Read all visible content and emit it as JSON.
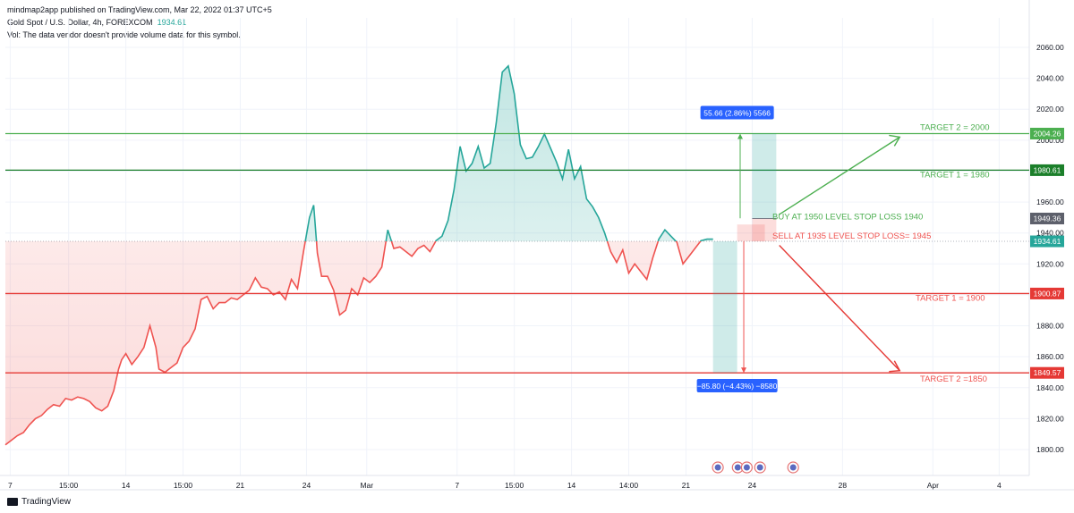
{
  "header": {
    "published": "mindmap2app published on TradingView.com, Mar 22, 2022 01:37 UTC+5",
    "symbol": "Gold Spot / U.S. Dollar, 4h, FOREXCOM",
    "last_price": "1934.61",
    "volume_note": "Vol: The data vendor doesn't provide volume data for this symbol."
  },
  "footer": {
    "brand": "TradingView"
  },
  "colors": {
    "up": "#26a69a",
    "down": "#ef5350",
    "green_line": "#4caf50",
    "dark_green": "#1b7f2a",
    "red_line": "#e53935",
    "blue_label": "#2962ff"
  },
  "chart_data": {
    "type": "line",
    "ylim": [
      1790,
      2070
    ],
    "yticks": [
      "2060.00",
      "2040.00",
      "2020.00",
      "2000.00",
      "1980.00",
      "1960.00",
      "1940.00",
      "1920.00",
      "1900.00",
      "1880.00",
      "1860.00",
      "1840.00",
      "1820.00",
      "1800.00"
    ],
    "ytick_values": [
      2060,
      2040,
      2020,
      2000,
      1980,
      1960,
      1940,
      1920,
      1900,
      1880,
      1860,
      1840,
      1820,
      1800
    ],
    "xticks": [
      {
        "label": "7",
        "t": 0.8
      },
      {
        "label": "15:00",
        "t": 10.5
      },
      {
        "label": "14",
        "t": 20
      },
      {
        "label": "15:00",
        "t": 29.5
      },
      {
        "label": "21",
        "t": 39
      },
      {
        "label": "24",
        "t": 50
      },
      {
        "label": "Mar",
        "t": 60
      },
      {
        "label": "7",
        "t": 75
      },
      {
        "label": "15:00",
        "t": 84.5
      },
      {
        "label": "14",
        "t": 94
      },
      {
        "label": "14:00",
        "t": 103.5
      },
      {
        "label": "21",
        "t": 113
      },
      {
        "label": "24",
        "t": 124
      },
      {
        "label": "28",
        "t": 139
      },
      {
        "label": "Apr",
        "t": 154
      },
      {
        "label": "4",
        "t": 165
      }
    ],
    "x_range": [
      0,
      170
    ],
    "series_points": [
      [
        0,
        1803
      ],
      [
        1,
        1806
      ],
      [
        2,
        1809
      ],
      [
        3,
        1811
      ],
      [
        4,
        1816
      ],
      [
        5,
        1820
      ],
      [
        6,
        1822
      ],
      [
        7,
        1826
      ],
      [
        8,
        1829
      ],
      [
        9,
        1828
      ],
      [
        10,
        1833
      ],
      [
        11,
        1832
      ],
      [
        12,
        1834
      ],
      [
        13,
        1833
      ],
      [
        14,
        1831
      ],
      [
        15,
        1827
      ],
      [
        16,
        1825
      ],
      [
        17,
        1828
      ],
      [
        18,
        1838
      ],
      [
        18.8,
        1852
      ],
      [
        19.3,
        1858
      ],
      [
        20,
        1862
      ],
      [
        21,
        1855
      ],
      [
        22,
        1860
      ],
      [
        23,
        1866
      ],
      [
        24,
        1880
      ],
      [
        25,
        1866
      ],
      [
        25.5,
        1852
      ],
      [
        26.5,
        1850
      ],
      [
        27.5,
        1853
      ],
      [
        28.5,
        1856
      ],
      [
        29.5,
        1866
      ],
      [
        30.5,
        1870
      ],
      [
        31.5,
        1878
      ],
      [
        32.5,
        1897
      ],
      [
        33.5,
        1899
      ],
      [
        34.5,
        1891
      ],
      [
        35.5,
        1895
      ],
      [
        36.5,
        1895
      ],
      [
        37.5,
        1898
      ],
      [
        38.5,
        1897
      ],
      [
        39.5,
        1900
      ],
      [
        40.5,
        1903
      ],
      [
        41.5,
        1911
      ],
      [
        42.5,
        1905
      ],
      [
        43.5,
        1904
      ],
      [
        44.5,
        1900
      ],
      [
        45.5,
        1902
      ],
      [
        46.5,
        1897
      ],
      [
        47.5,
        1910
      ],
      [
        48.5,
        1904
      ],
      [
        49.5,
        1928
      ],
      [
        50.5,
        1950
      ],
      [
        51.2,
        1958
      ],
      [
        51.8,
        1927
      ],
      [
        52.5,
        1912
      ],
      [
        53.5,
        1912
      ],
      [
        54.5,
        1903
      ],
      [
        55.5,
        1887
      ],
      [
        56.5,
        1890
      ],
      [
        57.5,
        1904
      ],
      [
        58.5,
        1900
      ],
      [
        59.5,
        1911
      ],
      [
        60.5,
        1908
      ],
      [
        61.5,
        1912
      ],
      [
        62.5,
        1918
      ],
      [
        63.5,
        1942
      ],
      [
        64.5,
        1930
      ],
      [
        65.5,
        1931
      ],
      [
        66.5,
        1928
      ],
      [
        67.5,
        1925
      ],
      [
        68.5,
        1930
      ],
      [
        69.5,
        1932
      ],
      [
        70.5,
        1928
      ],
      [
        71.5,
        1935
      ],
      [
        72.5,
        1938
      ],
      [
        73.5,
        1948
      ],
      [
        74.5,
        1968
      ],
      [
        75.5,
        1996
      ],
      [
        76.5,
        1980
      ],
      [
        77.5,
        1985
      ],
      [
        78.5,
        1996
      ],
      [
        79.5,
        1982
      ],
      [
        80.5,
        1985
      ],
      [
        81.5,
        2011
      ],
      [
        82.5,
        2044
      ],
      [
        83.5,
        2048
      ],
      [
        84.5,
        2030
      ],
      [
        85.5,
        1997
      ],
      [
        86.5,
        1988
      ],
      [
        87.5,
        1989
      ],
      [
        88.5,
        1996
      ],
      [
        89.5,
        2004
      ],
      [
        90.5,
        1995
      ],
      [
        91.5,
        1986
      ],
      [
        92.5,
        1975
      ],
      [
        93.5,
        1994
      ],
      [
        94.5,
        1975
      ],
      [
        95.5,
        1983
      ],
      [
        96.5,
        1962
      ],
      [
        97.5,
        1957
      ],
      [
        98.5,
        1950
      ],
      [
        99.5,
        1940
      ],
      [
        100.5,
        1928
      ],
      [
        101.5,
        1921
      ],
      [
        102.5,
        1929
      ],
      [
        103.5,
        1914
      ],
      [
        104.5,
        1920
      ],
      [
        105.5,
        1915
      ],
      [
        106.5,
        1910
      ],
      [
        107.5,
        1924
      ],
      [
        108.5,
        1936
      ],
      [
        109.5,
        1942
      ],
      [
        110.5,
        1938
      ],
      [
        111.5,
        1934
      ],
      [
        112.5,
        1920
      ],
      [
        113.5,
        1925
      ],
      [
        114.5,
        1930
      ],
      [
        115.5,
        1935
      ],
      [
        116.5,
        1936
      ],
      [
        117.5,
        1936
      ]
    ],
    "horizontal_levels": [
      {
        "value": 2004.26,
        "label": "2004.26",
        "color": "#4caf50",
        "badge_bg": "#4caf50"
      },
      {
        "value": 1980.61,
        "label": "1980.61",
        "color": "#1b7f2a",
        "badge_bg": "#1b7f2a"
      },
      {
        "value": 1900.87,
        "label": "1900.87",
        "color": "#e53935",
        "badge_bg": "#e53935"
      },
      {
        "value": 1849.57,
        "label": "1849.57",
        "color": "#e53935",
        "badge_bg": "#e53935"
      }
    ],
    "price_badges": [
      {
        "value": 1949.36,
        "label": "1949.36",
        "bg": "#5d606b"
      },
      {
        "value": 1934.61,
        "label": "1934.61",
        "bg": "#26a69a"
      }
    ],
    "annotations": {
      "target2_up": "TARGET 2 = 2000",
      "target1_up": "TARGET 1 = 1980",
      "buy": "BUY AT 1950 LEVEL STOP LOSS 1940",
      "sell": "SELL AT 1935 LEVEL STOP LOSS= 1945",
      "target1_down": "TARGET 1 = 1900",
      "target2_down": "TARGET 2 =1850",
      "long_measure": "55.66 (2.86%) 5566",
      "short_measure": "−85.80 (−4.43%) −8580"
    }
  }
}
